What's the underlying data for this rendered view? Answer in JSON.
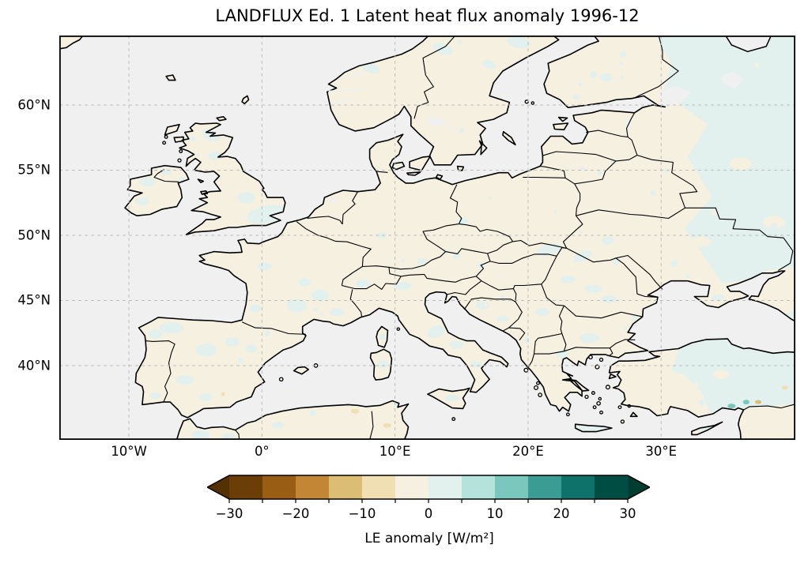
{
  "chart_data": {
    "type": "map",
    "subtype": "filled-anomaly-map",
    "projection": "PlateCarree",
    "region": "Europe",
    "title": "LANDFLUX Ed. 1 Latent heat flux anomaly 1996-12",
    "extent": {
      "lon_min": -15.2,
      "lon_max": 40.3,
      "lat_min": 34.3,
      "lat_max": 65.4
    },
    "x_ticks": [
      {
        "value": -10,
        "label": "10°W"
      },
      {
        "value": 0,
        "label": "0°"
      },
      {
        "value": 10,
        "label": "10°E"
      },
      {
        "value": 20,
        "label": "20°E"
      },
      {
        "value": 30,
        "label": "30°E"
      }
    ],
    "y_ticks": [
      {
        "value": 40,
        "label": "40°N"
      },
      {
        "value": 45,
        "label": "45°N"
      },
      {
        "value": 50,
        "label": "50°N"
      },
      {
        "value": 55,
        "label": "55°N"
      },
      {
        "value": 60,
        "label": "60°N"
      }
    ],
    "gridlines": {
      "visible": true,
      "style": "dashed",
      "color": "#bcbcbc"
    },
    "ocean_color": "#f0f0f0",
    "coastline_color": "#000000",
    "border_color": "#000000",
    "frame_color": "#000000",
    "colorbar": {
      "label": "LE anomaly [W/m²]",
      "orientation": "horizontal",
      "colormap": "BrBG",
      "extend": "both",
      "levels": [
        -30,
        -25,
        -20,
        -15,
        -10,
        -5,
        0,
        5,
        10,
        15,
        20,
        25,
        30
      ],
      "colors": [
        "#6b3e07",
        "#995d13",
        "#c28634",
        "#dcbd76",
        "#f0dfb2",
        "#f5f0e0",
        "#e2f0ee",
        "#b5e3dc",
        "#7ac8bd",
        "#3b9c93",
        "#0e726a",
        "#004e43"
      ],
      "under_color": "#543005",
      "over_color": "#003c30",
      "ticks": [
        -30,
        -20,
        -10,
        0,
        10,
        20,
        30
      ],
      "tick_labels": [
        "−30",
        "−20",
        "−10",
        "0",
        "10",
        "20",
        "30"
      ]
    },
    "anomaly_field_summary": {
      "near_zero_negative_bin_color": "#f5f0e0",
      "near_zero_positive_bin_color": "#e2f0ee",
      "description": "Weak anomalies over land: mostly 0 to −5 W/m² (pale tan) over western and central Europe with patchy 0 to +5 W/m² (pale teal) areas over the British Isles, Iberia, France, Italy, the Balkans, Scandinavia, and broadly positive over eastern Europe, western Russia, Crete, Cyprus and central-eastern Turkey; isolated stronger teal and tan-orange specks in southeastern Turkey. Oceans, seas and large lakes are masked light grey."
    }
  }
}
